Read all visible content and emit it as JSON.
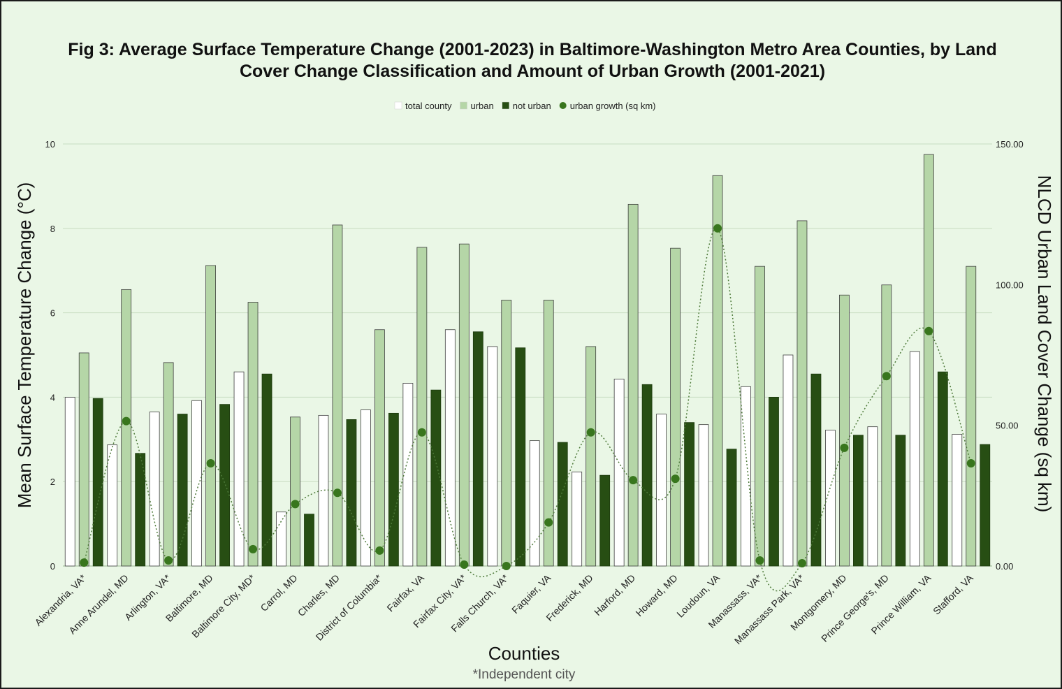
{
  "chart_data": {
    "type": "bar",
    "title": [
      "Fig 3: Average Surface Temperature Change (2001-2023) in Baltimore-Washington Metro Area Counties, by Land",
      "Cover Change Classification and Amount of Urban Growth (2001-2021)"
    ],
    "xlabel": "Counties",
    "ylabel": "Mean Surface Temperature Change (°C)",
    "y2label": "NLCD Urban Land Cover Change (sq km)",
    "footnote": "*Independent city",
    "ylim": [
      0,
      10
    ],
    "y2lim": [
      0,
      150
    ],
    "yticks": [
      "0",
      "2",
      "4",
      "6",
      "8",
      "10"
    ],
    "y2ticks": [
      "0.00",
      "50.00",
      "100.00",
      "150.00"
    ],
    "grid": true,
    "legend_position": "top",
    "categories": [
      "Alexandria, VA*",
      "Anne Arundel, MD",
      "Arlington, VA*",
      "Baltimore, MD",
      "Baltimore City, MD*",
      "Carrol, MD",
      "Charles, MD",
      "District of Columbia*",
      "Fairfax, VA",
      "Fairfax City, VA*",
      "Falls Church, VA*",
      "Faquier, VA",
      "Frederick, MD",
      "Harford, MD",
      "Howard, MD",
      "Loudoun, VA",
      "Manassass, VA*",
      "Manassass Park, VA*",
      "Montgomery, MD",
      "Prince George's, MD",
      "Prince William, VA",
      "Stafford, VA"
    ],
    "series": [
      {
        "name": "total county",
        "type": "bar",
        "axis": "left",
        "color": "#ffffff",
        "values": [
          4.0,
          2.87,
          3.65,
          3.92,
          4.6,
          1.28,
          3.57,
          3.7,
          4.33,
          5.6,
          5.2,
          2.97,
          2.23,
          4.43,
          3.6,
          3.35,
          4.25,
          5.0,
          3.22,
          3.3,
          5.08,
          3.12
        ]
      },
      {
        "name": "urban",
        "type": "bar",
        "axis": "left",
        "color": "#b5d6a7",
        "values": [
          5.05,
          6.55,
          4.82,
          7.12,
          6.25,
          3.53,
          8.08,
          5.6,
          7.55,
          7.63,
          6.3,
          6.3,
          5.2,
          8.57,
          7.53,
          9.25,
          7.1,
          8.18,
          6.42,
          6.66,
          9.75,
          7.1
        ]
      },
      {
        "name": "not urban",
        "type": "bar",
        "axis": "left",
        "color": "#274e13",
        "values": [
          3.97,
          2.67,
          3.6,
          3.83,
          4.55,
          1.23,
          3.47,
          3.62,
          4.17,
          5.55,
          5.17,
          2.93,
          2.15,
          4.3,
          3.4,
          2.77,
          4.0,
          4.55,
          3.1,
          3.1,
          4.6,
          2.88
        ]
      },
      {
        "name": "urban growth (sq km)",
        "type": "line-scatter",
        "axis": "right",
        "color": "#38761d",
        "values": [
          1.2,
          51.5,
          2.0,
          36.5,
          6.0,
          22.0,
          26.0,
          5.5,
          47.5,
          0.5,
          0.0,
          15.5,
          47.5,
          30.5,
          31.0,
          120.0,
          2.0,
          1.0,
          42.0,
          67.5,
          83.5,
          36.5
        ]
      }
    ]
  }
}
